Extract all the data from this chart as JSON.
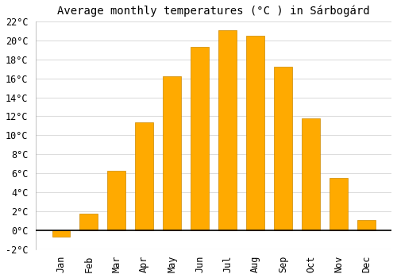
{
  "title": "Average monthly temperatures (°C ) in Sárbogárd",
  "months": [
    "Jan",
    "Feb",
    "Mar",
    "Apr",
    "May",
    "Jun",
    "Jul",
    "Aug",
    "Sep",
    "Oct",
    "Nov",
    "Dec"
  ],
  "values": [
    -0.7,
    1.8,
    6.3,
    11.4,
    16.2,
    19.3,
    21.1,
    20.5,
    17.2,
    11.8,
    5.5,
    1.1
  ],
  "bar_color": "#FFAA00",
  "bar_edge_color": "#CC8800",
  "ylim": [
    -2,
    22
  ],
  "yticks": [
    -2,
    0,
    2,
    4,
    6,
    8,
    10,
    12,
    14,
    16,
    18,
    20,
    22
  ],
  "plot_bg_color": "#ffffff",
  "fig_bg_color": "#ffffff",
  "grid_color": "#dddddd",
  "title_fontsize": 10,
  "tick_fontsize": 8.5,
  "bar_width": 0.65
}
